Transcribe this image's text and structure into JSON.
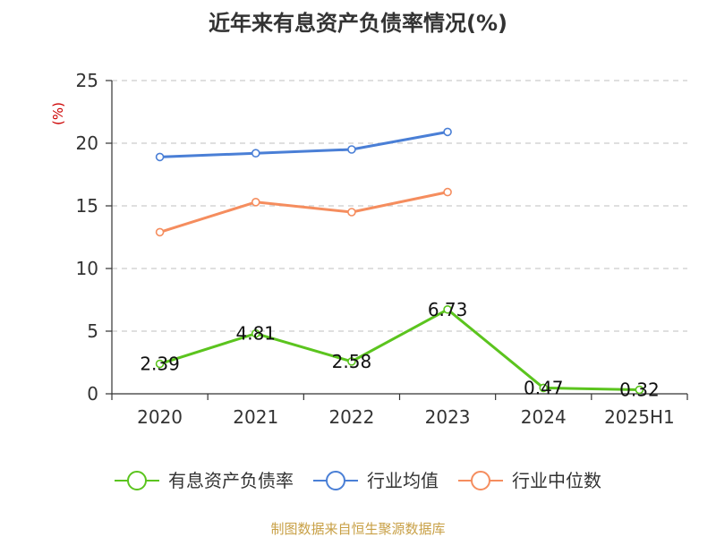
{
  "title": "近年来有息资产负债率情况(%)",
  "unit_label": "(%)",
  "source_note": "制图数据来自恒生聚源数据库",
  "colors": {
    "title": "#333333",
    "axis": "#333333",
    "grid": "#cccccc",
    "unit": "#cc0000",
    "source": "#c8a046"
  },
  "chart_data": {
    "type": "line",
    "categories": [
      "2020",
      "2021",
      "2022",
      "2023",
      "2024",
      "2025H1"
    ],
    "ylim": [
      0,
      25
    ],
    "yticks": [
      0,
      5,
      10,
      15,
      20,
      25
    ],
    "grid": true,
    "legend_position": "bottom",
    "series": [
      {
        "name": "有息资产负债率",
        "color": "#5bc41e",
        "values": [
          2.39,
          4.81,
          2.58,
          6.73,
          0.47,
          0.32
        ],
        "labels": [
          "2.39",
          "4.81",
          "2.58",
          "6.73",
          "0.47",
          "0.32"
        ]
      },
      {
        "name": "行业均值",
        "color": "#4a7fd6",
        "values": [
          18.9,
          19.2,
          19.5,
          20.9,
          null,
          null
        ]
      },
      {
        "name": "行业中位数",
        "color": "#f58d5e",
        "values": [
          12.9,
          15.3,
          14.5,
          16.1,
          null,
          null
        ]
      }
    ]
  }
}
